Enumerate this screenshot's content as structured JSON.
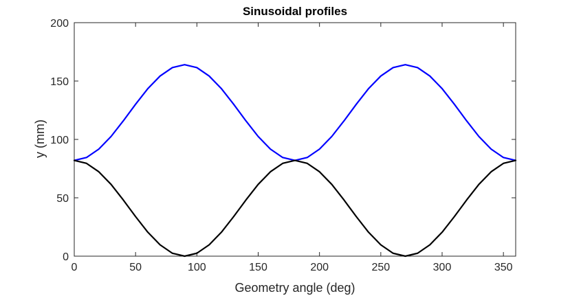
{
  "chart_data": {
    "type": "line",
    "title": "Sinusoidal profiles",
    "xlabel": "Geometry angle (deg)",
    "ylabel": "y (mm)",
    "xlim": [
      0,
      360
    ],
    "ylim": [
      0,
      200
    ],
    "xticks": [
      0,
      50,
      100,
      150,
      200,
      250,
      300,
      350
    ],
    "yticks": [
      0,
      50,
      100,
      150,
      200
    ],
    "grid": false,
    "legend": "none",
    "x": [
      0,
      10,
      20,
      30,
      40,
      50,
      60,
      70,
      80,
      90,
      100,
      110,
      120,
      130,
      140,
      150,
      160,
      170,
      180,
      190,
      200,
      210,
      220,
      230,
      240,
      250,
      260,
      270,
      280,
      290,
      300,
      310,
      320,
      330,
      340,
      350,
      360
    ],
    "series": [
      {
        "color": "#0000ff",
        "values": [
          82,
          84.5,
          91.7,
          102.5,
          115.9,
          130.1,
          143.5,
          154.3,
          161.5,
          164,
          161.5,
          154.3,
          143.5,
          130.1,
          115.9,
          102.5,
          91.7,
          84.5,
          82,
          84.5,
          91.7,
          102.5,
          115.9,
          130.1,
          143.5,
          154.3,
          161.5,
          164,
          161.5,
          154.3,
          143.5,
          130.1,
          115.9,
          102.5,
          91.7,
          84.5,
          82
        ]
      },
      {
        "color": "#000000",
        "values": [
          82,
          79.5,
          72.3,
          61.5,
          48.1,
          33.9,
          20.5,
          9.7,
          2.5,
          0,
          2.5,
          9.7,
          20.5,
          33.9,
          48.1,
          61.5,
          72.3,
          79.5,
          82,
          79.5,
          72.3,
          61.5,
          48.1,
          33.9,
          20.5,
          9.7,
          2.5,
          0,
          2.5,
          9.7,
          20.5,
          33.9,
          48.1,
          61.5,
          72.3,
          79.5,
          82
        ]
      }
    ]
  }
}
